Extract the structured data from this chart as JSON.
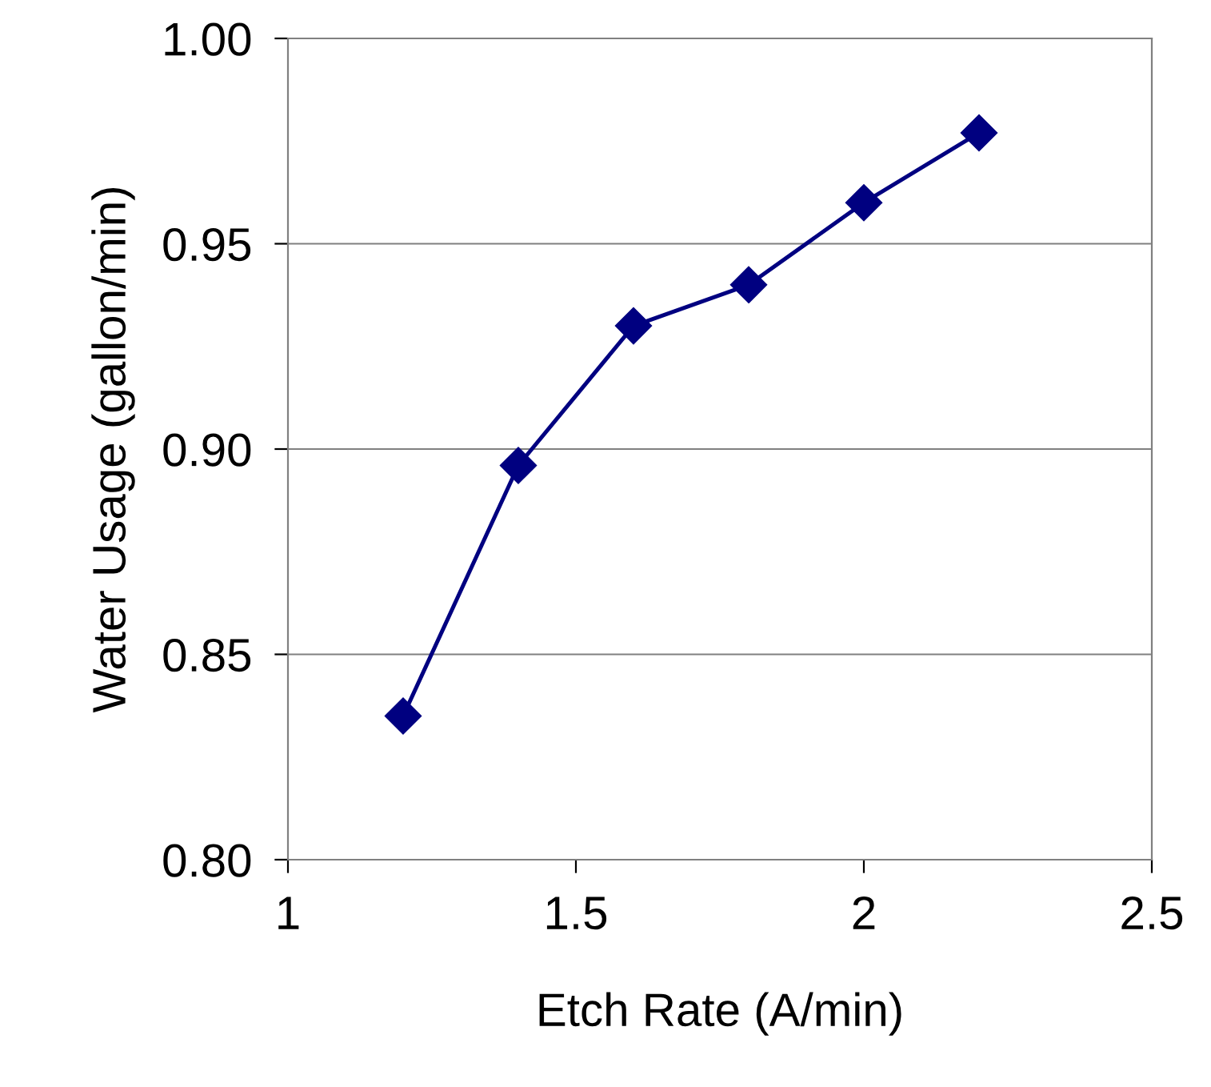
{
  "chart_data": {
    "type": "line",
    "xlabel": "Etch Rate (A/min)",
    "ylabel": "Water Usage (gallon/min)",
    "x": [
      1.2,
      1.4,
      1.6,
      1.8,
      2.0,
      2.2
    ],
    "series": [
      {
        "color": "#000080",
        "values": [
          0.835,
          0.896,
          0.93,
          0.94,
          0.96,
          0.977
        ]
      }
    ],
    "xlim": [
      1,
      2.5
    ],
    "xticks": [
      1,
      1.5,
      2,
      2.5
    ],
    "ylim": [
      0.8,
      1.0
    ],
    "yticks": [
      {
        "value": 0.8,
        "label": "0.80"
      },
      {
        "value": 0.85,
        "label": "0.85"
      },
      {
        "value": 0.9,
        "label": "0.90"
      },
      {
        "value": 0.95,
        "label": "0.95"
      },
      {
        "value": 1.0,
        "label": "1.00"
      }
    ],
    "grid": "y",
    "marker": "diamond",
    "line_style": "solid"
  }
}
